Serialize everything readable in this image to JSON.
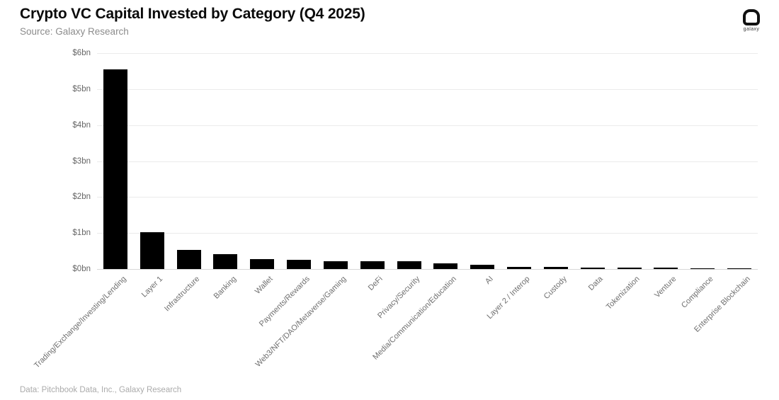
{
  "header": {
    "title": "Crypto VC Capital Invested by Category (Q4 2025)",
    "subtitle": "Source: Galaxy Research",
    "logo_label": "galaxy"
  },
  "footer": {
    "attribution": "Data: Pitchbook Data, Inc., Galaxy Research"
  },
  "colors": {
    "bar": "#000000",
    "grid": "#ebebeb",
    "baseline": "#d8d8d8",
    "axis_text": "#666666",
    "subtitle_text": "#8c8c8c",
    "footer_text": "#ababab"
  },
  "chart_data": {
    "type": "bar",
    "title": "Crypto VC Capital Invested by Category (Q4 2025)",
    "xlabel": "",
    "ylabel": "",
    "ylim": [
      0,
      6
    ],
    "yticks": [
      "$0bn",
      "$1bn",
      "$2bn",
      "$3bn",
      "$4bn",
      "$5bn",
      "$6bn"
    ],
    "grid": "horizontal",
    "legend": "none",
    "categories": [
      "Trading/Exchange/Investing/Lending",
      "Layer 1",
      "Infrastructure",
      "Banking",
      "Wallet",
      "Payments/Rewards",
      "Web3/NFT/DAO/Metaverse/Gaming",
      "DeFi",
      "Privacy/Security",
      "Media/Communication/Education",
      "AI",
      "Layer 2 / Interop",
      "Custody",
      "Data",
      "Tokenization",
      "Venture",
      "Compliance",
      "Enterprise Blockchain"
    ],
    "values": [
      5.55,
      1.02,
      0.54,
      0.42,
      0.28,
      0.25,
      0.22,
      0.22,
      0.21,
      0.16,
      0.11,
      0.06,
      0.06,
      0.05,
      0.05,
      0.05,
      0.025,
      0.02
    ],
    "units": "billions USD"
  }
}
